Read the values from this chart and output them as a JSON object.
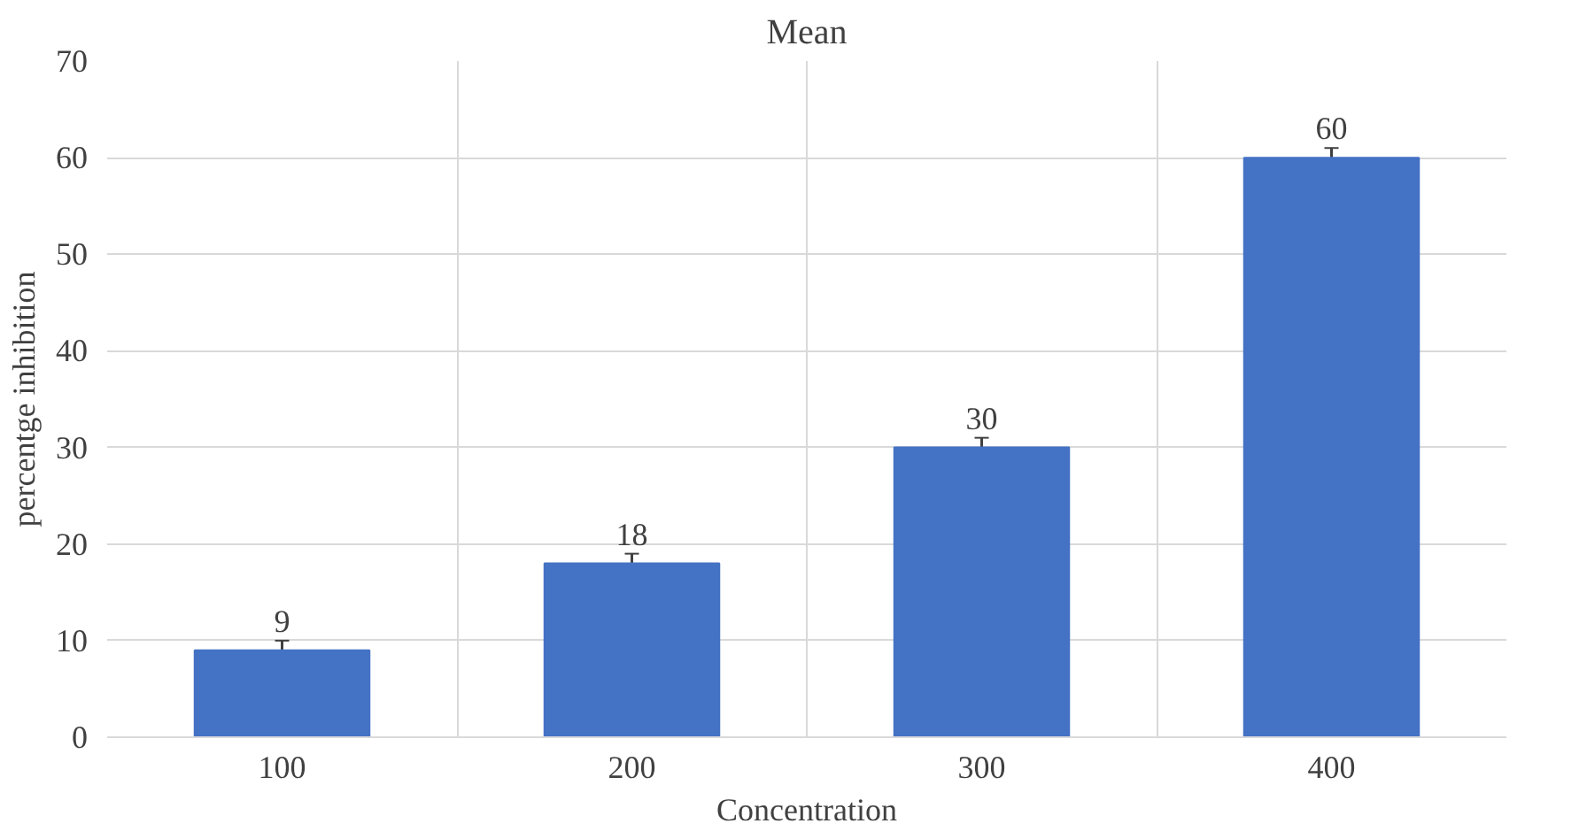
{
  "chart_data": {
    "type": "bar",
    "title": "Mean",
    "xlabel": "Concentration",
    "ylabel": "percentge inhibition",
    "categories": [
      "100",
      "200",
      "300",
      "400"
    ],
    "values": [
      9,
      18,
      30,
      60
    ],
    "errors": [
      1,
      1,
      1,
      1
    ],
    "color": "#4472c4",
    "ylim": [
      0,
      70
    ],
    "yticks": [
      0,
      10,
      20,
      30,
      40,
      50,
      60,
      70
    ],
    "grid": true,
    "data_labels": true
  }
}
